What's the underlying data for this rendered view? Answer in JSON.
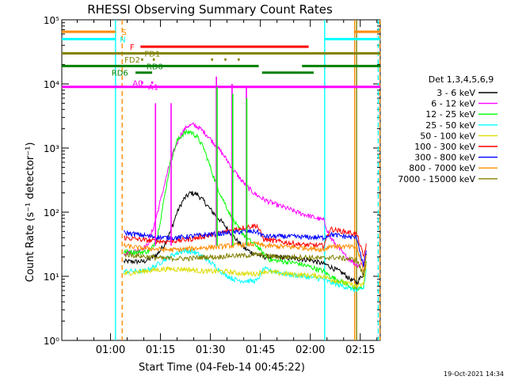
{
  "chart_data": {
    "type": "line",
    "title": "RHESSI Observing Summary Count Rates",
    "xlabel": "Start Time (04-Feb-14 00:45:22)",
    "ylabel": "Count Rate (s⁻¹ detector⁻¹)",
    "y_scale": "log",
    "ylim": [
      1,
      100000
    ],
    "xlim_minutes": [
      45.37,
      141
    ],
    "x_ticks": [
      {
        "t": 60,
        "label": "01:00"
      },
      {
        "t": 75,
        "label": "01:15"
      },
      {
        "t": 90,
        "label": "01:30"
      },
      {
        "t": 105,
        "label": "01:45"
      },
      {
        "t": 120,
        "label": "02:00"
      },
      {
        "t": 135,
        "label": "02:15"
      }
    ],
    "y_ticks": [
      {
        "v": 1,
        "label": "10⁰"
      },
      {
        "v": 10,
        "label": "10¹"
      },
      {
        "v": 100,
        "label": "10²"
      },
      {
        "v": 1000,
        "label": "10³"
      },
      {
        "v": 10000,
        "label": "10⁴"
      },
      {
        "v": 100000,
        "label": "10⁵"
      }
    ],
    "legend_title": "Det 1,3,4,5,6,9",
    "legend_placement": "right",
    "series": [
      {
        "name": "3 - 6 keV",
        "color": "#000000",
        "points": [
          [
            64,
            17
          ],
          [
            70,
            17
          ],
          [
            72,
            19
          ],
          [
            74,
            22
          ],
          [
            76,
            30
          ],
          [
            78,
            50
          ],
          [
            80,
            100
          ],
          [
            82,
            160
          ],
          [
            84,
            200
          ],
          [
            86,
            190
          ],
          [
            88,
            150
          ],
          [
            90,
            110
          ],
          [
            92,
            85
          ],
          [
            94,
            65
          ],
          [
            96,
            48
          ],
          [
            98,
            36
          ],
          [
            100,
            28
          ],
          [
            102,
            24
          ],
          [
            104,
            22
          ],
          [
            106,
            20
          ],
          [
            110,
            20
          ],
          [
            115,
            19
          ],
          [
            120,
            18
          ],
          [
            125,
            15
          ],
          [
            130,
            11
          ],
          [
            132,
            9
          ],
          [
            134,
            8
          ],
          [
            136,
            11
          ],
          [
            137,
            28
          ]
        ]
      },
      {
        "name": "6 - 12 keV",
        "color": "#ff00ff",
        "points": [
          [
            64,
            23
          ],
          [
            68,
            25
          ],
          [
            71,
            30
          ],
          [
            73,
            60
          ],
          [
            75,
            150
          ],
          [
            77,
            400
          ],
          [
            79,
            900
          ],
          [
            81,
            1600
          ],
          [
            83,
            2200
          ],
          [
            85,
            2300
          ],
          [
            87,
            2000
          ],
          [
            89,
            1600
          ],
          [
            91,
            1200
          ],
          [
            93,
            900
          ],
          [
            95,
            650
          ],
          [
            97,
            450
          ],
          [
            99,
            330
          ],
          [
            101,
            250
          ],
          [
            103,
            200
          ],
          [
            105,
            170
          ],
          [
            107,
            150
          ],
          [
            110,
            130
          ],
          [
            113,
            115
          ],
          [
            116,
            100
          ],
          [
            119,
            90
          ],
          [
            122,
            80
          ],
          [
            124,
            75
          ],
          [
            126,
            40
          ],
          [
            130,
            22
          ],
          [
            134,
            15
          ],
          [
            136,
            16
          ],
          [
            137,
            30
          ]
        ]
      },
      {
        "name": "12 - 25 keV",
        "color": "#00ff00",
        "points": [
          [
            64,
            24
          ],
          [
            70,
            24
          ],
          [
            72,
            25
          ],
          [
            74,
            40
          ],
          [
            76,
            150
          ],
          [
            78,
            600
          ],
          [
            80,
            1300
          ],
          [
            82,
            1700
          ],
          [
            84,
            1800
          ],
          [
            86,
            1500
          ],
          [
            88,
            1000
          ],
          [
            90,
            500
          ],
          [
            92,
            250
          ],
          [
            94,
            150
          ],
          [
            96,
            90
          ],
          [
            98,
            60
          ],
          [
            100,
            45
          ],
          [
            102,
            35
          ],
          [
            104,
            30
          ],
          [
            106,
            22
          ],
          [
            108,
            18
          ],
          [
            112,
            17
          ],
          [
            116,
            16
          ],
          [
            120,
            14
          ],
          [
            124,
            12
          ],
          [
            126,
            10
          ],
          [
            130,
            8
          ],
          [
            134,
            6
          ],
          [
            136,
            7
          ],
          [
            137,
            20
          ]
        ]
      },
      {
        "name": "25 - 50 keV",
        "color": "#00ffff",
        "points": [
          [
            64,
            12
          ],
          [
            70,
            12
          ],
          [
            73,
            14
          ],
          [
            76,
            18
          ],
          [
            79,
            22
          ],
          [
            82,
            25
          ],
          [
            85,
            24
          ],
          [
            88,
            20
          ],
          [
            91,
            15
          ],
          [
            94,
            11
          ],
          [
            97,
            9
          ],
          [
            100,
            8.5
          ],
          [
            104,
            8.5
          ],
          [
            106,
            13
          ],
          [
            112,
            11
          ],
          [
            118,
            10
          ],
          [
            124,
            9
          ],
          [
            126,
            8
          ],
          [
            130,
            7
          ],
          [
            134,
            6
          ],
          [
            136,
            6.5
          ],
          [
            137,
            15
          ]
        ]
      },
      {
        "name": "50 - 100 keV",
        "color": "#dddd00",
        "points": [
          [
            64,
            11
          ],
          [
            70,
            12
          ],
          [
            76,
            13
          ],
          [
            82,
            13
          ],
          [
            88,
            12
          ],
          [
            94,
            12
          ],
          [
            100,
            11
          ],
          [
            104,
            11
          ],
          [
            106,
            12
          ],
          [
            112,
            11
          ],
          [
            118,
            10.5
          ],
          [
            124,
            10
          ],
          [
            126,
            9
          ],
          [
            130,
            8
          ],
          [
            134,
            7
          ],
          [
            136,
            7.5
          ],
          [
            137,
            18
          ]
        ]
      },
      {
        "name": "100 - 300 keV",
        "color": "#ff0000",
        "points": [
          [
            64,
            40
          ],
          [
            68,
            38
          ],
          [
            72,
            36
          ],
          [
            76,
            35
          ],
          [
            80,
            36
          ],
          [
            84,
            38
          ],
          [
            88,
            42
          ],
          [
            92,
            46
          ],
          [
            96,
            52
          ],
          [
            100,
            58
          ],
          [
            104,
            62
          ],
          [
            106,
            38
          ],
          [
            112,
            34
          ],
          [
            118,
            31
          ],
          [
            124,
            30
          ],
          [
            126,
            55
          ],
          [
            128,
            52
          ],
          [
            132,
            48
          ],
          [
            134,
            45
          ],
          [
            136,
            20
          ],
          [
            137,
            35
          ]
        ]
      },
      {
        "name": "300 - 800 keV",
        "color": "#0000ff",
        "points": [
          [
            64,
            48
          ],
          [
            68,
            45
          ],
          [
            72,
            42
          ],
          [
            76,
            40
          ],
          [
            80,
            40
          ],
          [
            84,
            42
          ],
          [
            88,
            44
          ],
          [
            92,
            46
          ],
          [
            96,
            48
          ],
          [
            100,
            50
          ],
          [
            104,
            50
          ],
          [
            106,
            42
          ],
          [
            112,
            42
          ],
          [
            118,
            41
          ],
          [
            124,
            40
          ],
          [
            126,
            45
          ],
          [
            130,
            42
          ],
          [
            134,
            40
          ],
          [
            136,
            14
          ],
          [
            137,
            30
          ]
        ]
      },
      {
        "name": "800 - 7000 keV",
        "color": "#ff8c00",
        "points": [
          [
            64,
            30
          ],
          [
            68,
            28
          ],
          [
            72,
            27
          ],
          [
            76,
            26
          ],
          [
            80,
            26
          ],
          [
            84,
            27
          ],
          [
            88,
            28
          ],
          [
            92,
            29
          ],
          [
            96,
            30
          ],
          [
            100,
            31
          ],
          [
            104,
            32
          ],
          [
            106,
            30
          ],
          [
            112,
            29
          ],
          [
            118,
            28
          ],
          [
            124,
            26
          ],
          [
            126,
            30
          ],
          [
            130,
            29
          ],
          [
            134,
            28
          ],
          [
            136,
            12
          ],
          [
            137,
            25
          ]
        ]
      },
      {
        "name": "7000 - 15000 keV",
        "color": "#808000",
        "points": [
          [
            64,
            22
          ],
          [
            68,
            21
          ],
          [
            72,
            20
          ],
          [
            76,
            19
          ],
          [
            80,
            19
          ],
          [
            84,
            19
          ],
          [
            88,
            20
          ],
          [
            92,
            20
          ],
          [
            96,
            21
          ],
          [
            100,
            21
          ],
          [
            104,
            22
          ],
          [
            106,
            21
          ],
          [
            112,
            20
          ],
          [
            118,
            20
          ],
          [
            124,
            19
          ],
          [
            126,
            20
          ],
          [
            130,
            19
          ],
          [
            134,
            18
          ],
          [
            136,
            10
          ],
          [
            137,
            20
          ]
        ]
      }
    ],
    "spikes": [
      {
        "t": 73.5,
        "top": 5000,
        "color": "#ff00ff"
      },
      {
        "t": 78.2,
        "top": 5000,
        "color": "#ff00ff"
      },
      {
        "t": 91.8,
        "top": 13000,
        "color": "#ff00ff"
      },
      {
        "t": 96.5,
        "top": 10000,
        "color": "#ff00ff"
      },
      {
        "t": 100.8,
        "top": 9000,
        "color": "#ff00ff"
      },
      {
        "t": 92,
        "top": 9000,
        "color": "#00ff00"
      },
      {
        "t": 96.7,
        "top": 7000,
        "color": "#00ff00"
      },
      {
        "t": 100.9,
        "top": 6000,
        "color": "#00ff00"
      }
    ],
    "vertical_lines": [
      {
        "t": 61.5,
        "color": "#00ffff",
        "dashed": false
      },
      {
        "t": 63.5,
        "color": "#ff8c00",
        "dashed": true
      },
      {
        "t": 124.3,
        "color": "#00ffff",
        "dashed": false
      },
      {
        "t": 133.3,
        "color": "#ff8c00",
        "dashed": false
      },
      {
        "t": 133.9,
        "color": "#808000",
        "dashed": false
      },
      {
        "t": 140.4,
        "color": "#00ffff",
        "dashed": true
      },
      {
        "t": 140.9,
        "color": "#ff8c00",
        "dashed": true
      }
    ],
    "flag_bars": [
      {
        "label": "S",
        "level": 65000,
        "color": "#ff8c00",
        "segments": [
          [
            45.37,
            61.5
          ],
          [
            133.3,
            141
          ]
        ],
        "label_t": 63.3
      },
      {
        "label": "N",
        "level": 50000,
        "color": "#00ffff",
        "segments": [
          [
            45.37,
            61.5
          ],
          [
            124.3,
            141
          ]
        ],
        "label_t": 62.8
      },
      {
        "label": "F",
        "level": 38000,
        "color": "#ff0000",
        "segments": [
          [
            69,
            119.5
          ]
        ],
        "label_t": 65.8
      },
      {
        "label": "FD1",
        "level": 30000,
        "color": "#808000",
        "segments": [
          [
            45.37,
            141
          ]
        ],
        "label_t": 70.2
      },
      {
        "label": "FD2",
        "level": 24000,
        "color": "#808000",
        "segments": [
          [
            69.2,
            69.8
          ],
          [
            72.7,
            73.3
          ],
          [
            90.2,
            90.8
          ],
          [
            94.2,
            94.8
          ],
          [
            98.2,
            98.8
          ]
        ],
        "label_t": 64.2
      },
      {
        "label": "RD0",
        "level": 19000,
        "color": "#008000",
        "segments": [
          [
            45.37,
            104.5
          ],
          [
            117.5,
            141
          ]
        ],
        "label_t": 70.8
      },
      {
        "label": "RD6",
        "level": 15000,
        "color": "#008000",
        "segments": [
          [
            67.5,
            72.5
          ],
          [
            105.5,
            121
          ]
        ],
        "label_t": 60.3
      },
      {
        "label": "A0",
        "level": 10500,
        "color": "#ff00ff",
        "segments": [
          [
            69.2,
            69.8
          ],
          [
            72.2,
            72.8
          ]
        ],
        "label_t": 66.6
      },
      {
        "label": "A1",
        "level": 9000,
        "color": "#ff00ff",
        "segments": [
          [
            45.37,
            141
          ]
        ],
        "label_t": 71.3
      }
    ],
    "footer_date": "19-Oct-2021 14:34"
  }
}
